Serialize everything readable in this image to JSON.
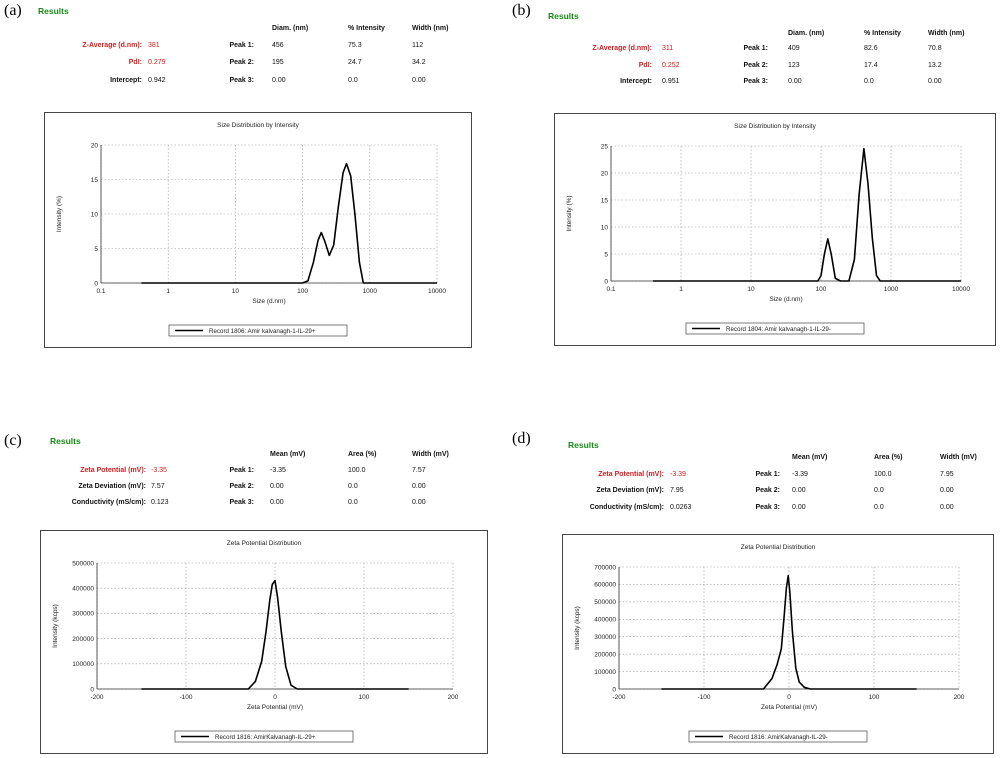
{
  "panels": [
    {
      "id": "a",
      "label": "(a)",
      "heading": "Results",
      "columns": [
        "Diam. (nm)",
        "% Intensity",
        "Width (nm)"
      ],
      "summary": [
        {
          "label": "Z-Average (d.nm):",
          "value": "381",
          "highlight": true
        },
        {
          "label": "PdI:",
          "value": "0.279",
          "highlight": true
        },
        {
          "label": "Intercept:",
          "value": "0.942",
          "highlight": false
        }
      ],
      "peaks": [
        {
          "label": "Peak 1:",
          "cells": [
            "456",
            "75.3",
            "112"
          ]
        },
        {
          "label": "Peak 2:",
          "cells": [
            "195",
            "24.7",
            "34.2"
          ]
        },
        {
          "label": "Peak 3:",
          "cells": [
            "0.00",
            "0.0",
            "0.00"
          ]
        }
      ]
    },
    {
      "id": "b",
      "label": "(b)",
      "heading": "Results",
      "columns": [
        "Diam. (nm)",
        "% Intensity",
        "Width (nm)"
      ],
      "summary": [
        {
          "label": "Z-Average (d.nm):",
          "value": "311",
          "highlight": true
        },
        {
          "label": "PdI:",
          "value": "0.252",
          "highlight": true
        },
        {
          "label": "Intercept:",
          "value": "0.951",
          "highlight": false
        }
      ],
      "peaks": [
        {
          "label": "Peak 1:",
          "cells": [
            "409",
            "82.6",
            "70.8"
          ]
        },
        {
          "label": "Peak 2:",
          "cells": [
            "123",
            "17.4",
            "13.2"
          ]
        },
        {
          "label": "Peak 3:",
          "cells": [
            "0.00",
            "0.0",
            "0.00"
          ]
        }
      ]
    },
    {
      "id": "c",
      "label": "(c)",
      "heading": "Results",
      "columns": [
        "Mean (mV)",
        "Area (%)",
        "Width (mV)"
      ],
      "summary": [
        {
          "label": "Zeta Potential (mV):",
          "value": "-3.35",
          "highlight": true
        },
        {
          "label": "Zeta Deviation (mV):",
          "value": "7.57",
          "highlight": false
        },
        {
          "label": "Conductivity (mS/cm):",
          "value": "0.123",
          "highlight": false
        }
      ],
      "peaks": [
        {
          "label": "Peak 1:",
          "cells": [
            "-3.35",
            "100.0",
            "7.57"
          ]
        },
        {
          "label": "Peak 2:",
          "cells": [
            "0.00",
            "0.0",
            "0.00"
          ]
        },
        {
          "label": "Peak 3:",
          "cells": [
            "0.00",
            "0.0",
            "0.00"
          ]
        }
      ]
    },
    {
      "id": "d",
      "label": "(d)",
      "heading": "Results",
      "columns": [
        "Mean (mV)",
        "Area (%)",
        "Width (mV)"
      ],
      "summary": [
        {
          "label": "Zeta Potential (mV):",
          "value": "-3.39",
          "highlight": true
        },
        {
          "label": "Zeta Deviation (mV):",
          "value": "7.95",
          "highlight": false
        },
        {
          "label": "Conductivity (mS/cm):",
          "value": "0.0263",
          "highlight": false
        }
      ],
      "peaks": [
        {
          "label": "Peak 1:",
          "cells": [
            "-3.39",
            "100.0",
            "7.95"
          ]
        },
        {
          "label": "Peak 2:",
          "cells": [
            "0.00",
            "0.0",
            "0.00"
          ]
        },
        {
          "label": "Peak 3:",
          "cells": [
            "0.00",
            "0.0",
            "0.00"
          ]
        }
      ]
    }
  ],
  "colors": {
    "heading": "#1a8a1a",
    "highlight": "#cc2222",
    "line": "#000000",
    "grid": "#999999"
  },
  "chart_data": [
    {
      "id": "a",
      "type": "line",
      "title": "Size Distribution by Intensity",
      "xlabel": "Size (d.nm)",
      "ylabel": "Intensity (%)",
      "xscale": "log",
      "xlim": [
        0.1,
        10000
      ],
      "ylim": [
        0,
        20
      ],
      "xticks": [
        0.1,
        1,
        10,
        100,
        1000,
        10000
      ],
      "xticklabels": [
        "0.1",
        "1",
        "10",
        "100",
        "1000",
        "10000"
      ],
      "yticks": [
        0,
        5,
        10,
        15,
        20
      ],
      "yticklabels": [
        "0",
        "5",
        "10",
        "15",
        "20"
      ],
      "grid": true,
      "legend_position": "bottom-center",
      "series": [
        {
          "name": "Record 1806: Amir kalvanagh-1-IL-29+",
          "x": [
            0.4,
            100,
            120,
            145,
            170,
            190,
            215,
            250,
            290,
            340,
            400,
            450,
            520,
            600,
            700,
            800,
            1000,
            10000
          ],
          "y": [
            0,
            0,
            0.3,
            3,
            6.2,
            7.3,
            6,
            4,
            5.5,
            11,
            16,
            17.3,
            15.5,
            10,
            3,
            0,
            0,
            0
          ]
        }
      ]
    },
    {
      "id": "b",
      "type": "line",
      "title": "Size Distribution by Intensity",
      "xlabel": "Size (d.nm)",
      "ylabel": "Intensity (%)",
      "xscale": "log",
      "xlim": [
        0.1,
        10000
      ],
      "ylim": [
        0,
        25
      ],
      "xticks": [
        0.1,
        1,
        10,
        100,
        1000,
        10000
      ],
      "xticklabels": [
        "0.1",
        "1",
        "10",
        "100",
        "1000",
        "10000"
      ],
      "yticks": [
        0,
        5,
        10,
        15,
        20,
        25
      ],
      "yticklabels": [
        "0",
        "5",
        "10",
        "15",
        "20",
        "25"
      ],
      "grid": true,
      "legend_position": "bottom-center",
      "series": [
        {
          "name": "Record 1804: Amir kalvanagh-1-IL-29-",
          "x": [
            0.4,
            90,
            100,
            112,
            125,
            140,
            160,
            190,
            250,
            300,
            350,
            410,
            470,
            540,
            620,
            700,
            1000,
            10000
          ],
          "y": [
            0,
            0,
            1,
            5,
            7.8,
            5,
            0.5,
            0,
            0,
            4,
            16,
            24.5,
            18,
            8,
            1,
            0,
            0,
            0
          ]
        }
      ]
    },
    {
      "id": "c",
      "type": "line",
      "title": "Zeta Potential Distribution",
      "xlabel": "Zeta Potential (mV)",
      "ylabel": "Intensity (kcps)",
      "xlim": [
        -200,
        200
      ],
      "ylim": [
        0,
        500000
      ],
      "xticks": [
        -200,
        -100,
        0,
        100,
        200
      ],
      "xticklabels": [
        "-200",
        "-100",
        "0",
        "100",
        "200"
      ],
      "yticks": [
        0,
        100000,
        200000,
        300000,
        400000,
        500000
      ],
      "yticklabels": [
        "0",
        "100000",
        "200000",
        "300000",
        "400000",
        "500000"
      ],
      "grid": true,
      "legend_position": "bottom-center",
      "series": [
        {
          "name": "Record 1816: AmirKalvanagh-IL-29+",
          "x": [
            -150,
            -30,
            -22,
            -15,
            -10,
            -6,
            -3,
            0,
            3,
            7,
            12,
            18,
            25,
            150
          ],
          "y": [
            0,
            0,
            30000,
            110000,
            230000,
            350000,
            415000,
            430000,
            360000,
            230000,
            90000,
            15000,
            0,
            0
          ]
        }
      ]
    },
    {
      "id": "d",
      "type": "line",
      "title": "Zeta Potential Distribution",
      "xlabel": "Zeta Potential (mV)",
      "ylabel": "Intensity (kcps)",
      "xlim": [
        -200,
        200
      ],
      "ylim": [
        0,
        700000
      ],
      "xticks": [
        -200,
        -100,
        0,
        100,
        200
      ],
      "xticklabels": [
        "-200",
        "-100",
        "0",
        "100",
        "200"
      ],
      "yticks": [
        0,
        100000,
        200000,
        300000,
        400000,
        500000,
        600000,
        700000
      ],
      "yticklabels": [
        "0",
        "100000",
        "200000",
        "300000",
        "400000",
        "500000",
        "600000",
        "700000"
      ],
      "grid": true,
      "legend_position": "bottom-center",
      "series": [
        {
          "name": "Record 1816: AmirKalvanagh-IL-29-",
          "x": [
            -150,
            -30,
            -20,
            -14,
            -9,
            -6,
            -3,
            -1,
            1,
            4,
            8,
            12,
            18,
            25,
            150
          ],
          "y": [
            0,
            0,
            60000,
            140000,
            230000,
            400000,
            580000,
            650000,
            560000,
            330000,
            120000,
            40000,
            10000,
            0,
            0
          ]
        }
      ]
    }
  ]
}
